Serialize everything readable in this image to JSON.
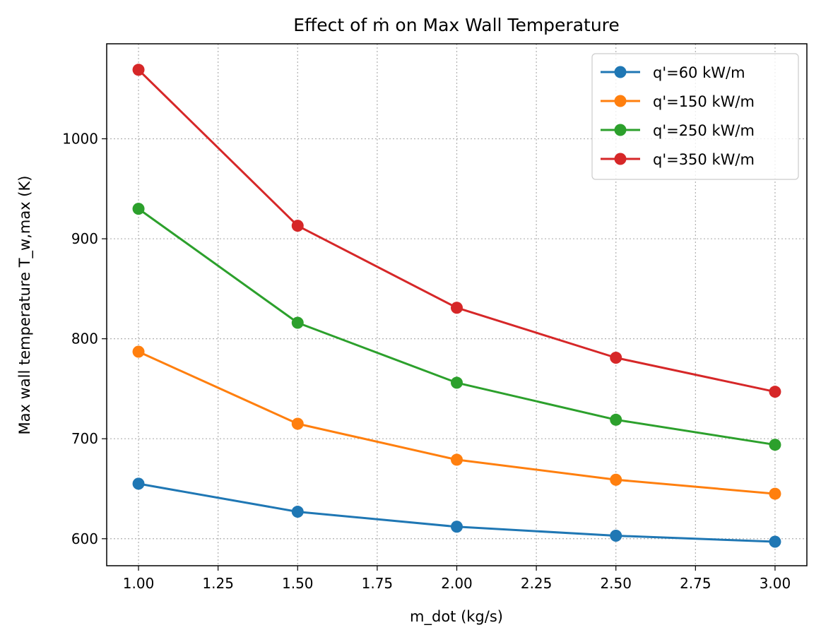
{
  "chart_data": {
    "type": "line",
    "title": "Effect of ṁ on Max Wall Temperature",
    "xlabel": "m_dot (kg/s)",
    "ylabel": "Max wall temperature T_w,max (K)",
    "xlim": [
      0.9,
      3.1
    ],
    "ylim": [
      573,
      1095
    ],
    "x": [
      1.0,
      1.5,
      2.0,
      2.5,
      3.0
    ],
    "xticks": [
      1.0,
      1.25,
      1.5,
      1.75,
      2.0,
      2.25,
      2.5,
      2.75,
      3.0
    ],
    "xtick_labels": [
      "1.00",
      "1.25",
      "1.50",
      "1.75",
      "2.00",
      "2.25",
      "2.50",
      "2.75",
      "3.00"
    ],
    "yticks": [
      600,
      700,
      800,
      900,
      1000
    ],
    "ytick_labels": [
      "600",
      "700",
      "800",
      "900",
      "1000"
    ],
    "grid": true,
    "legend_position": "top-right",
    "series": [
      {
        "name": "q'=60 kW/m",
        "color": "#1f77b4",
        "values": [
          655,
          627,
          612,
          603,
          597
        ]
      },
      {
        "name": "q'=150 kW/m",
        "color": "#ff7f0e",
        "values": [
          787,
          715,
          679,
          659,
          645
        ]
      },
      {
        "name": "q'=250 kW/m",
        "color": "#2ca02c",
        "values": [
          930,
          816,
          756,
          719,
          694
        ]
      },
      {
        "name": "q'=350 kW/m",
        "color": "#d62728",
        "values": [
          1069,
          913,
          831,
          781,
          747
        ]
      }
    ]
  }
}
